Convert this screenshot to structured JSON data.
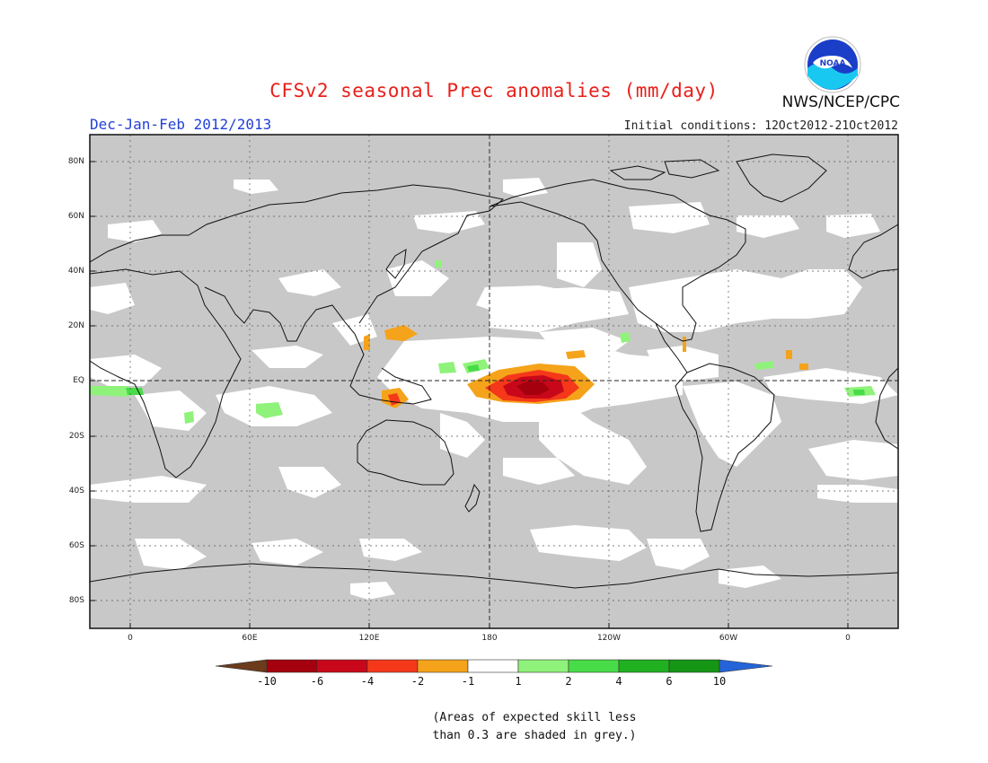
{
  "title": "CFSv2 seasonal Prec anomalies (mm/day)",
  "season": "Dec-Jan-Feb 2012/2013",
  "initial_conditions": "Initial conditions: 12Oct2012-21Oct2012",
  "agency": "NWS/NCEP/CPC",
  "logo_text": "NOAA",
  "lat_labels": [
    "80N",
    "60N",
    "40N",
    "20N",
    "EQ",
    "20S",
    "40S",
    "60S",
    "80S"
  ],
  "lon_labels": [
    "0",
    "60E",
    "120E",
    "180",
    "120W",
    "60W",
    "0"
  ],
  "colorbar": {
    "ticks": [
      "-10",
      "-6",
      "-4",
      "-2",
      "-1",
      "1",
      "2",
      "4",
      "6",
      "10"
    ],
    "colors": [
      "#6b3b1c",
      "#a5000d",
      "#c8081a",
      "#f5381a",
      "#f5a31a",
      "#ffffff",
      "#8ff27a",
      "#48dc48",
      "#20b020",
      "#159615",
      "#2464d8"
    ]
  },
  "note_line1": "(Areas of expected skill less",
  "note_line2": "than 0.3 are shaded in grey.)",
  "colors": {
    "skill_grey": "#c8c8c8",
    "title_red": "#e8201a",
    "subtitle_blue": "#2340d8"
  }
}
